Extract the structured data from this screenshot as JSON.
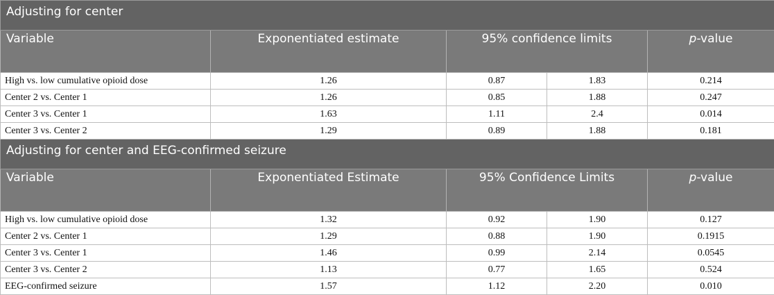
{
  "section1": {
    "title": "Adjusting for center",
    "headers": {
      "variable": "Variable",
      "estimate": "Exponentiated estimate",
      "ci": "95% confidence limits",
      "p_italic": "p",
      "p_rest": "-value"
    },
    "rows": [
      [
        "High vs. low cumulative opioid dose",
        "1.26",
        "0.87",
        "1.83",
        "0.214"
      ],
      [
        "Center 2 vs. Center 1",
        "1.26",
        "0.85",
        "1.88",
        "0.247"
      ],
      [
        "Center 3 vs. Center 1",
        "1.63",
        "1.11",
        "2.4",
        "0.014"
      ],
      [
        "Center 3 vs. Center 2",
        "1.29",
        "0.89",
        "1.88",
        "0.181"
      ]
    ]
  },
  "section2": {
    "title": "Adjusting for center and EEG-confirmed seizure",
    "headers": {
      "variable": "Variable",
      "estimate": "Exponentiated Estimate",
      "ci": "95% Confidence Limits",
      "p_italic": "p",
      "p_rest": "-value"
    },
    "rows": [
      [
        "High vs. low cumulative opioid dose",
        "1.32",
        "0.92",
        "1.90",
        "0.127"
      ],
      [
        "Center 2 vs. Center 1",
        "1.29",
        "0.88",
        "1.90",
        "0.1915"
      ],
      [
        "Center 3 vs. Center 1",
        "1.46",
        "0.99",
        "2.14",
        "0.0545"
      ],
      [
        "Center 3 vs. Center 2",
        "1.13",
        "0.77",
        "1.65",
        "0.524"
      ],
      [
        "EEG-confirmed seizure",
        "1.57",
        "1.12",
        "2.20",
        "0.010"
      ]
    ]
  }
}
